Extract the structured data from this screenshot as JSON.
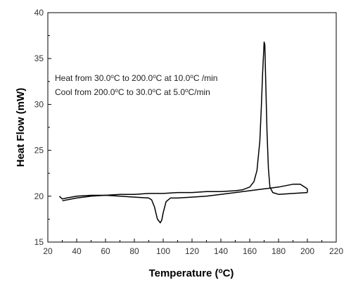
{
  "chart_data": {
    "type": "line",
    "title": "",
    "xlabel": "Temperature (",
    "xlabel_unit": "C)",
    "xlabel_sup": "o",
    "ylabel": "Heat Flow (mW)",
    "xlim": [
      20,
      220
    ],
    "ylim": [
      15,
      40
    ],
    "x_ticks": [
      20,
      40,
      60,
      80,
      100,
      120,
      140,
      160,
      180,
      200,
      220
    ],
    "y_ticks": [
      15,
      20,
      25,
      30,
      35,
      40
    ],
    "grid": false,
    "legend": "none",
    "line_color": "#000000",
    "annotations": [
      {
        "parts": [
          "Heat from 30.0",
          "o",
          "C to 200.0",
          "o",
          "C at 10.0",
          "o",
          "C /min"
        ]
      },
      {
        "parts": [
          "Cool from 200.0",
          "o",
          "C to 30.0",
          "o",
          "C at 5.0",
          "o",
          "C/min"
        ]
      }
    ],
    "series": [
      {
        "x": [
          30,
          40,
          50,
          60,
          70,
          80,
          90,
          100,
          110,
          120,
          130,
          140,
          150,
          155,
          160,
          163,
          165,
          167,
          168,
          169,
          170,
          170.5,
          171,
          172,
          173,
          174,
          176,
          180,
          190,
          200
        ],
        "y": [
          19.5,
          19.8,
          20.0,
          20.1,
          20.2,
          20.2,
          20.3,
          20.3,
          20.4,
          20.4,
          20.5,
          20.5,
          20.6,
          20.7,
          21.0,
          21.6,
          22.8,
          26.0,
          29.5,
          33.5,
          36.8,
          36.5,
          33.0,
          27.0,
          23.0,
          21.0,
          20.4,
          20.2,
          20.3,
          20.4
        ]
      },
      {
        "x": [
          200,
          195,
          190,
          180,
          175,
          170,
          160,
          150,
          140,
          130,
          120,
          110,
          105,
          102,
          100,
          99,
          98,
          96,
          94,
          92,
          90,
          80,
          70,
          60,
          50,
          40,
          33,
          30,
          28
        ],
        "y": [
          20.8,
          21.3,
          21.3,
          21.0,
          20.9,
          20.8,
          20.6,
          20.4,
          20.2,
          20.0,
          19.9,
          19.8,
          19.8,
          19.4,
          18.2,
          17.4,
          17.1,
          17.5,
          18.8,
          19.6,
          19.8,
          19.9,
          20.0,
          20.1,
          20.1,
          20.0,
          19.8,
          19.7,
          20.0
        ]
      }
    ]
  }
}
